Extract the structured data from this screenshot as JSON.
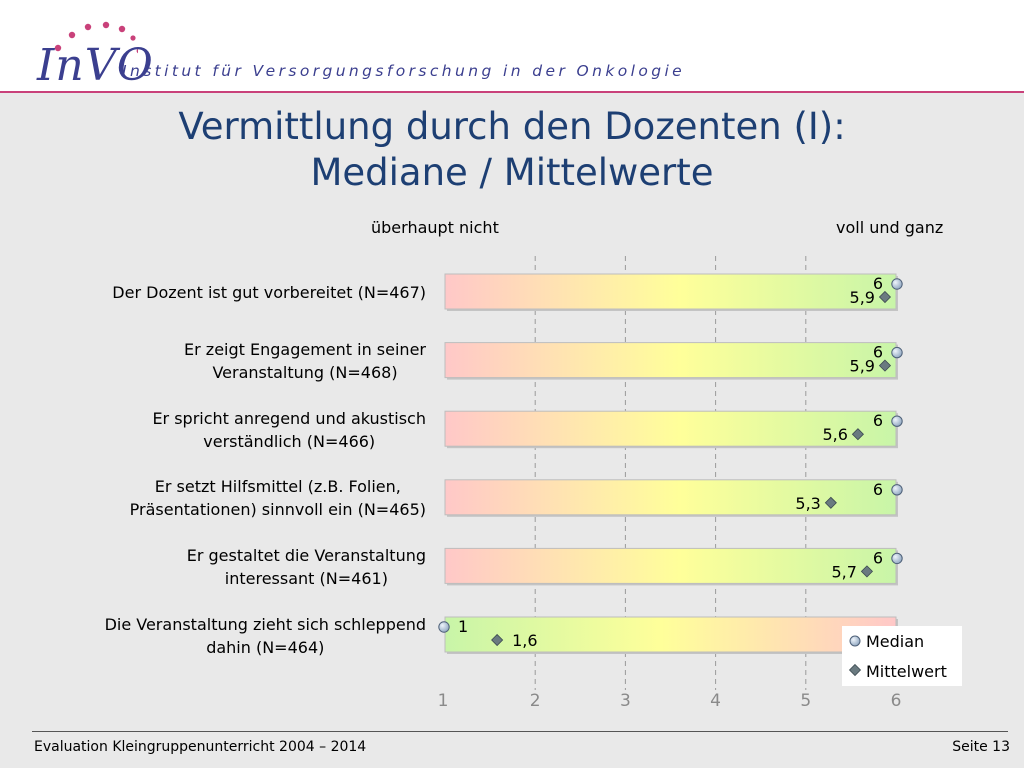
{
  "header": {
    "logo_text": "InVO",
    "institute": "Institut für Versorgungsforschung in der Onkologie"
  },
  "title_line1": "Vermittlung durch den Dozenten (I):",
  "title_line2": "Mediane / Mittelwerte",
  "scale_left_label": "überhaupt nicht",
  "scale_right_label": "voll und ganz",
  "footer": {
    "left": "Evaluation Kleingruppenunterricht 2004 – 2014",
    "right": "Seite 13"
  },
  "colors": {
    "title": "#1d3f73",
    "header_rule": "#c9417a",
    "logo": "#3b3f8f",
    "gradient_red": "#ffc8c8",
    "gradient_yellow": "#ffff9a",
    "gradient_green": "#c8f5a8",
    "median_marker": "#8fa6c0",
    "mean_marker": "#6a7a80"
  },
  "chart_data": {
    "type": "dot-range",
    "xlim": [
      1,
      6
    ],
    "xticks": [
      1,
      2,
      3,
      4,
      5,
      6
    ],
    "grid": true,
    "legend": {
      "position": "bottom-right",
      "entries": [
        "Median",
        "Mittelwert"
      ]
    },
    "items": [
      {
        "label_lines": [
          "Der Dozent ist gut vorbereitet (N=467)"
        ],
        "median": 6,
        "median_label": "6",
        "mean": 5.9,
        "mean_label": "5,9",
        "reversed": false
      },
      {
        "label_lines": [
          "Er zeigt Engagement in seiner",
          "Veranstaltung (N=468)"
        ],
        "median": 6,
        "median_label": "6",
        "mean": 5.9,
        "mean_label": "5,9",
        "reversed": false
      },
      {
        "label_lines": [
          "Er spricht anregend und akustisch",
          "verständlich (N=466)"
        ],
        "median": 6,
        "median_label": "6",
        "mean": 5.6,
        "mean_label": "5,6",
        "reversed": false
      },
      {
        "label_lines": [
          "Er setzt Hilfsmittel (z.B. Folien,",
          "Präsentationen) sinnvoll ein (N=465)"
        ],
        "median": 6,
        "median_label": "6",
        "mean": 5.3,
        "mean_label": "5,3",
        "reversed": false
      },
      {
        "label_lines": [
          "Er gestaltet die Veranstaltung",
          "interessant (N=461)"
        ],
        "median": 6,
        "median_label": "6",
        "mean": 5.7,
        "mean_label": "5,7",
        "reversed": false
      },
      {
        "label_lines": [
          "Die Veranstaltung zieht sich schleppend",
          "dahin (N=464)"
        ],
        "median": 1,
        "median_label": "1",
        "mean": 1.6,
        "mean_label": "1,6",
        "reversed": true
      }
    ]
  }
}
